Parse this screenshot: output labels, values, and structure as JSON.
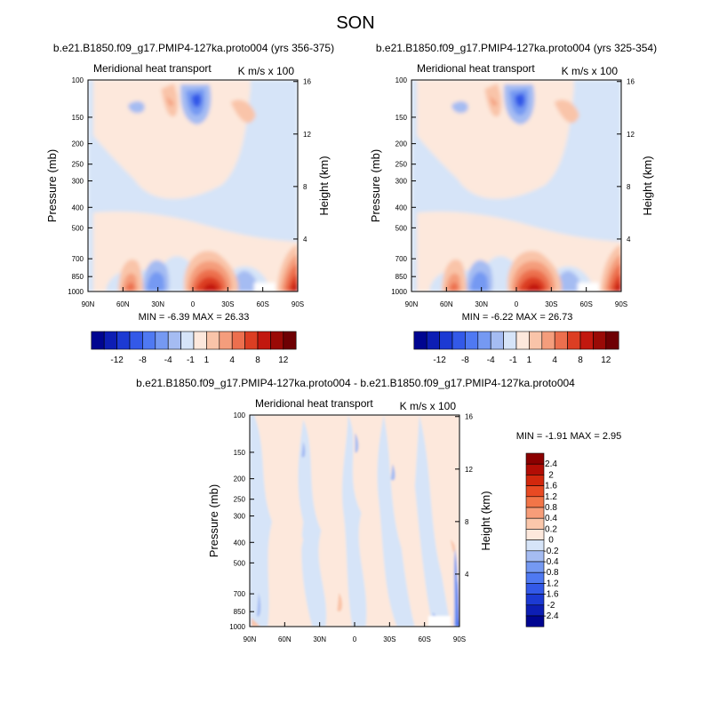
{
  "season": "SON",
  "panels": [
    {
      "title": "b.e21.B1850.f09_g17.PMIP4-127ka.proto004 (yrs 356-375)",
      "left_label": "Meridional heat transport",
      "right_label": "K m/s x 100",
      "min_max": "MIN = -6.39 MAX = 26.33"
    },
    {
      "title": "b.e21.B1850.f09_g17.PMIP4-127ka.proto004 (yrs 325-354)",
      "left_label": "Meridional heat transport",
      "right_label": "K m/s x 100",
      "min_max": "MIN = -6.22 MAX = 26.73"
    },
    {
      "title": "b.e21.B1850.f09_g17.PMIP4-127ka.proto004 - b.e21.B1850.f09_g17.PMIP4-127ka.proto004",
      "left_label": "Meridional heat transport",
      "right_label": "K m/s x 100",
      "min_max": "MIN = -1.91 MAX = 2.95"
    }
  ],
  "axes": {
    "ylabel_left": "Pressure (mb)",
    "ylabel_right": "Height (km)",
    "pressure_ticks": [
      "100",
      "150",
      "200",
      "250",
      "300",
      "400",
      "500",
      "700",
      "850",
      "1000"
    ],
    "height_ticks": [
      "16",
      "12",
      "8",
      "4"
    ],
    "lat_ticks": [
      "90N",
      "60N",
      "30N",
      "0",
      "30S",
      "60S",
      "90S"
    ]
  },
  "colorbars": {
    "main_labels": [
      "-12",
      "-8",
      "-4",
      "-1",
      "1",
      "4",
      "8",
      "12"
    ],
    "diff_labels": [
      "2.4",
      "2",
      "1.6",
      "1.2",
      "0.8",
      "0.4",
      "0.2",
      "0",
      "-0.2",
      "-0.4",
      "-0.8",
      "-1.2",
      "-1.6",
      "-2",
      "-2.4"
    ],
    "main_colors": [
      "#000590",
      "#0d1eb4",
      "#1c3ad3",
      "#3359e8",
      "#4f79f2",
      "#7599f2",
      "#a5bcf2",
      "#d6e4f8",
      "#fde8dc",
      "#f9c4a9",
      "#f49d7c",
      "#ec6f4e",
      "#dc3e23",
      "#c2180f",
      "#9a0a06",
      "#6e0003"
    ],
    "diff_colors": [
      "#8b0000",
      "#b20d05",
      "#d2280d",
      "#e84a23",
      "#f27548",
      "#f79d79",
      "#fbc7ab",
      "#fde8dc",
      "#d6e4f8",
      "#a5bcf2",
      "#7599f2",
      "#4f79f2",
      "#3359e8",
      "#1c3ad3",
      "#0d1eb4",
      "#000590"
    ]
  },
  "chart_data": [
    {
      "type": "heatmap",
      "title": "b.e21.B1850.f09_g17.PMIP4-127ka.proto004 (yrs 356-375)",
      "variable": "Meridional heat transport",
      "units": "K m/s x 100",
      "xlabel": "",
      "ylabel": "Pressure (mb)",
      "ylabel_right": "Height (km)",
      "x_range": [
        "90N",
        "90S"
      ],
      "y_range_mb": [
        1000,
        100
      ],
      "min": -6.39,
      "max": 26.33,
      "contour_levels": [
        -12,
        -8,
        -4,
        -1,
        1,
        4,
        8,
        12
      ],
      "features": [
        {
          "lat": 20,
          "p": 950,
          "value": 26
        },
        {
          "lat": -80,
          "p": 900,
          "value": 16
        },
        {
          "lat": 55,
          "p": 950,
          "value": 8
        },
        {
          "lat": 5,
          "p": 210,
          "value": -6
        },
        {
          "lat": 30,
          "p": 950,
          "value": -6
        },
        {
          "lat": -5,
          "p": 950,
          "value": -4
        }
      ]
    },
    {
      "type": "heatmap",
      "title": "b.e21.B1850.f09_g17.PMIP4-127ka.proto004 (yrs 325-354)",
      "variable": "Meridional heat transport",
      "units": "K m/s x 100",
      "xlabel": "",
      "ylabel": "Pressure (mb)",
      "ylabel_right": "Height (km)",
      "x_range": [
        "90N",
        "90S"
      ],
      "y_range_mb": [
        1000,
        100
      ],
      "min": -6.22,
      "max": 26.73,
      "contour_levels": [
        -12,
        -8,
        -4,
        -1,
        1,
        4,
        8,
        12
      ],
      "features": [
        {
          "lat": 20,
          "p": 950,
          "value": 26
        },
        {
          "lat": -80,
          "p": 900,
          "value": 16
        },
        {
          "lat": 55,
          "p": 950,
          "value": 8
        },
        {
          "lat": 5,
          "p": 210,
          "value": -6
        },
        {
          "lat": 30,
          "p": 950,
          "value": -6
        },
        {
          "lat": -5,
          "p": 950,
          "value": -4
        }
      ]
    },
    {
      "type": "heatmap",
      "title": "b.e21.B1850.f09_g17.PMIP4-127ka.proto004 - b.e21.B1850.f09_g17.PMIP4-127ka.proto004",
      "variable": "Meridional heat transport",
      "units": "K m/s x 100",
      "xlabel": "",
      "ylabel": "Pressure (mb)",
      "ylabel_right": "Height (km)",
      "x_range": [
        "90N",
        "90S"
      ],
      "y_range_mb": [
        1000,
        100
      ],
      "min": -1.91,
      "max": 2.95,
      "contour_levels": [
        -2.4,
        -2,
        -1.6,
        -1.2,
        -0.8,
        -0.4,
        -0.2,
        0,
        0.2,
        0.4,
        0.8,
        1.2,
        1.6,
        2,
        2.4
      ]
    }
  ]
}
